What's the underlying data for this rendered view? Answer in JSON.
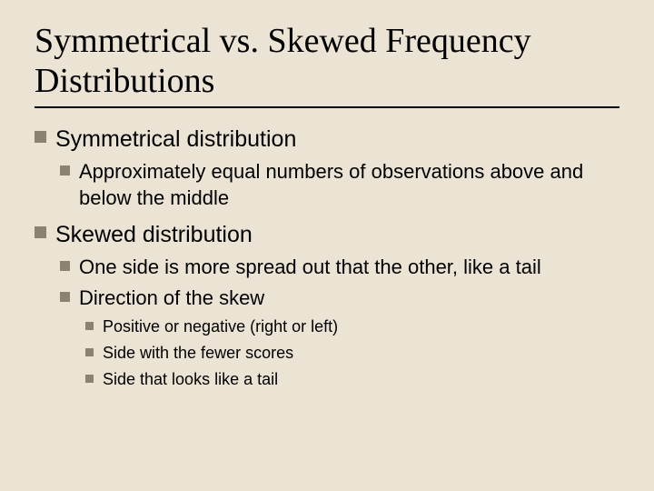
{
  "slide": {
    "background_color": "#ebe4d4",
    "bullet_color": "#8b8271",
    "title_font": "Times New Roman",
    "body_font": "Arial",
    "title_fontsize": 38,
    "title": "Symmetrical vs. Skewed Frequency Distributions",
    "bullets": {
      "b1": "Symmetrical distribution",
      "b1a": "Approximately equal numbers of observations above and below the middle",
      "b2": "Skewed distribution",
      "b2a": "One side is more spread out that the other, like a tail",
      "b2b": "Direction of the skew",
      "b2b1": "Positive or negative (right or left)",
      "b2b2": "Side with the fewer scores",
      "b2b3": "Side that looks like a tail"
    }
  }
}
